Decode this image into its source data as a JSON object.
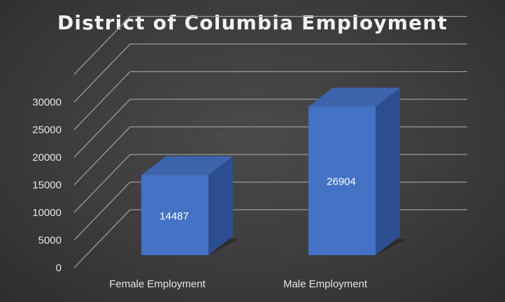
{
  "chart_data": {
    "type": "bar",
    "title": "District of Columbia Employment",
    "categories": [
      "Female Employment",
      "Male Employment"
    ],
    "values": [
      14487,
      26904
    ],
    "data_labels": [
      "14487",
      "26904"
    ],
    "y_ticks": [
      "0",
      "5000",
      "10000",
      "15000",
      "20000",
      "25000",
      "30000"
    ],
    "ylim": [
      0,
      35000
    ],
    "grid": true,
    "legend": "none",
    "style": "3d-column",
    "colors": {
      "bar_front": "#4472c4",
      "bar_top": "#3d63ad",
      "bar_side": "#2c4d8f",
      "gridline": "#9a9a9a",
      "background": "#3c3c3c",
      "text": "#e6e6e6"
    }
  }
}
